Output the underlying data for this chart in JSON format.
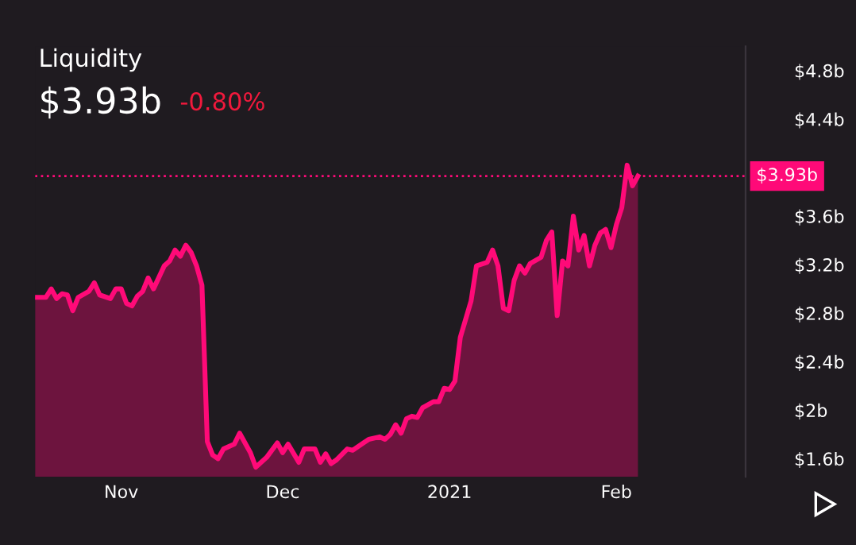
{
  "chart_data": {
    "type": "area",
    "title": "Liquidity",
    "subtitle": "$3.93b",
    "annotations": [
      "-0.80%"
    ],
    "x": [
      "2020-10-16",
      "2020-10-18",
      "2020-10-19",
      "2020-10-20",
      "2020-10-21",
      "2020-10-22",
      "2020-10-23",
      "2020-10-24",
      "2020-10-26",
      "2020-10-27",
      "2020-10-28",
      "2020-10-30",
      "2020-10-31",
      "2020-11-01",
      "2020-11-02",
      "2020-11-03",
      "2020-11-04",
      "2020-11-05",
      "2020-11-06",
      "2020-11-07",
      "2020-11-09",
      "2020-11-10",
      "2020-11-11",
      "2020-11-12",
      "2020-11-13",
      "2020-11-14",
      "2020-11-15",
      "2020-11-16",
      "2020-11-17",
      "2020-11-18",
      "2020-11-19",
      "2020-11-20",
      "2020-11-22",
      "2020-11-23",
      "2020-11-25",
      "2020-11-26",
      "2020-11-28",
      "2020-11-30",
      "2020-12-01",
      "2020-12-02",
      "2020-12-04",
      "2020-12-05",
      "2020-12-07",
      "2020-12-08",
      "2020-12-09",
      "2020-12-10",
      "2020-12-11",
      "2020-12-13",
      "2020-12-14",
      "2020-12-16",
      "2020-12-17",
      "2020-12-19",
      "2020-12-20",
      "2020-12-21",
      "2020-12-22",
      "2020-12-23",
      "2020-12-24",
      "2020-12-25",
      "2020-12-26",
      "2020-12-27",
      "2020-12-29",
      "2020-12-30",
      "2020-12-31",
      "2021-01-01",
      "2021-01-02",
      "2021-01-03",
      "2021-01-05",
      "2021-01-06",
      "2021-01-08",
      "2021-01-09",
      "2021-01-10",
      "2021-01-11",
      "2021-01-12",
      "2021-01-13",
      "2021-01-14",
      "2021-01-15",
      "2021-01-16",
      "2021-01-18",
      "2021-01-19",
      "2021-01-20",
      "2021-01-21",
      "2021-01-22",
      "2021-01-23",
      "2021-01-24",
      "2021-01-25",
      "2021-01-26",
      "2021-01-27",
      "2021-01-28",
      "2021-01-29",
      "2021-01-30",
      "2021-01-31",
      "2021-02-01",
      "2021-02-02",
      "2021-02-03",
      "2021-02-04",
      "2021-02-05"
    ],
    "series": [
      {
        "color": "#ff0a78",
        "values": [
          2.93,
          2.93,
          3.0,
          2.92,
          2.96,
          2.95,
          2.82,
          2.93,
          2.98,
          3.05,
          2.95,
          2.92,
          3.0,
          3.0,
          2.88,
          2.86,
          2.94,
          2.98,
          3.09,
          3.0,
          3.19,
          3.23,
          3.32,
          3.27,
          3.36,
          3.3,
          3.19,
          3.03,
          1.74,
          1.63,
          1.6,
          1.68,
          1.72,
          1.81,
          1.65,
          1.53,
          1.61,
          1.73,
          1.65,
          1.72,
          1.57,
          1.68,
          1.68,
          1.57,
          1.64,
          1.56,
          1.59,
          1.68,
          1.67,
          1.73,
          1.76,
          1.78,
          1.76,
          1.8,
          1.88,
          1.81,
          1.93,
          1.95,
          1.94,
          2.02,
          2.07,
          2.07,
          2.18,
          2.17,
          2.24,
          2.6,
          2.9,
          3.19,
          3.22,
          3.32,
          3.19,
          2.84,
          2.82,
          3.07,
          3.19,
          3.13,
          3.21,
          3.26,
          3.4,
          3.47,
          2.78,
          3.23,
          3.19,
          3.6,
          3.32,
          3.44,
          3.19,
          3.36,
          3.46,
          3.49,
          3.34,
          3.53,
          3.67,
          4.02,
          3.85,
          3.93
        ]
      }
    ],
    "xlim": [
      "2020-10-16",
      "2021-02-25"
    ],
    "xticks": [
      {
        "value": "2020-11-01",
        "label": "Nov"
      },
      {
        "value": "2020-12-01",
        "label": "Dec"
      },
      {
        "value": "2021-01-01",
        "label": "2021"
      },
      {
        "value": "2021-02-01",
        "label": "Feb"
      }
    ],
    "ylim": [
      1.45,
      5.0
    ],
    "yticks": [
      {
        "value": 1.6,
        "label": "$1.6b"
      },
      {
        "value": 2.0,
        "label": "$2b"
      },
      {
        "value": 2.4,
        "label": "$2.4b"
      },
      {
        "value": 2.8,
        "label": "$2.8b"
      },
      {
        "value": 3.2,
        "label": "$3.2b"
      },
      {
        "value": 3.6,
        "label": "$3.6b"
      },
      {
        "value": 4.4,
        "label": "$4.4b"
      },
      {
        "value": 4.8,
        "label": "$4.8b"
      }
    ],
    "ref_lines": [
      {
        "axis": "y",
        "value": 3.93,
        "label": "$3.93b",
        "color": "#ff0a78",
        "line_style": "dotted"
      }
    ],
    "grid": false,
    "legend": false,
    "marker": "none",
    "line_style": "solid"
  }
}
